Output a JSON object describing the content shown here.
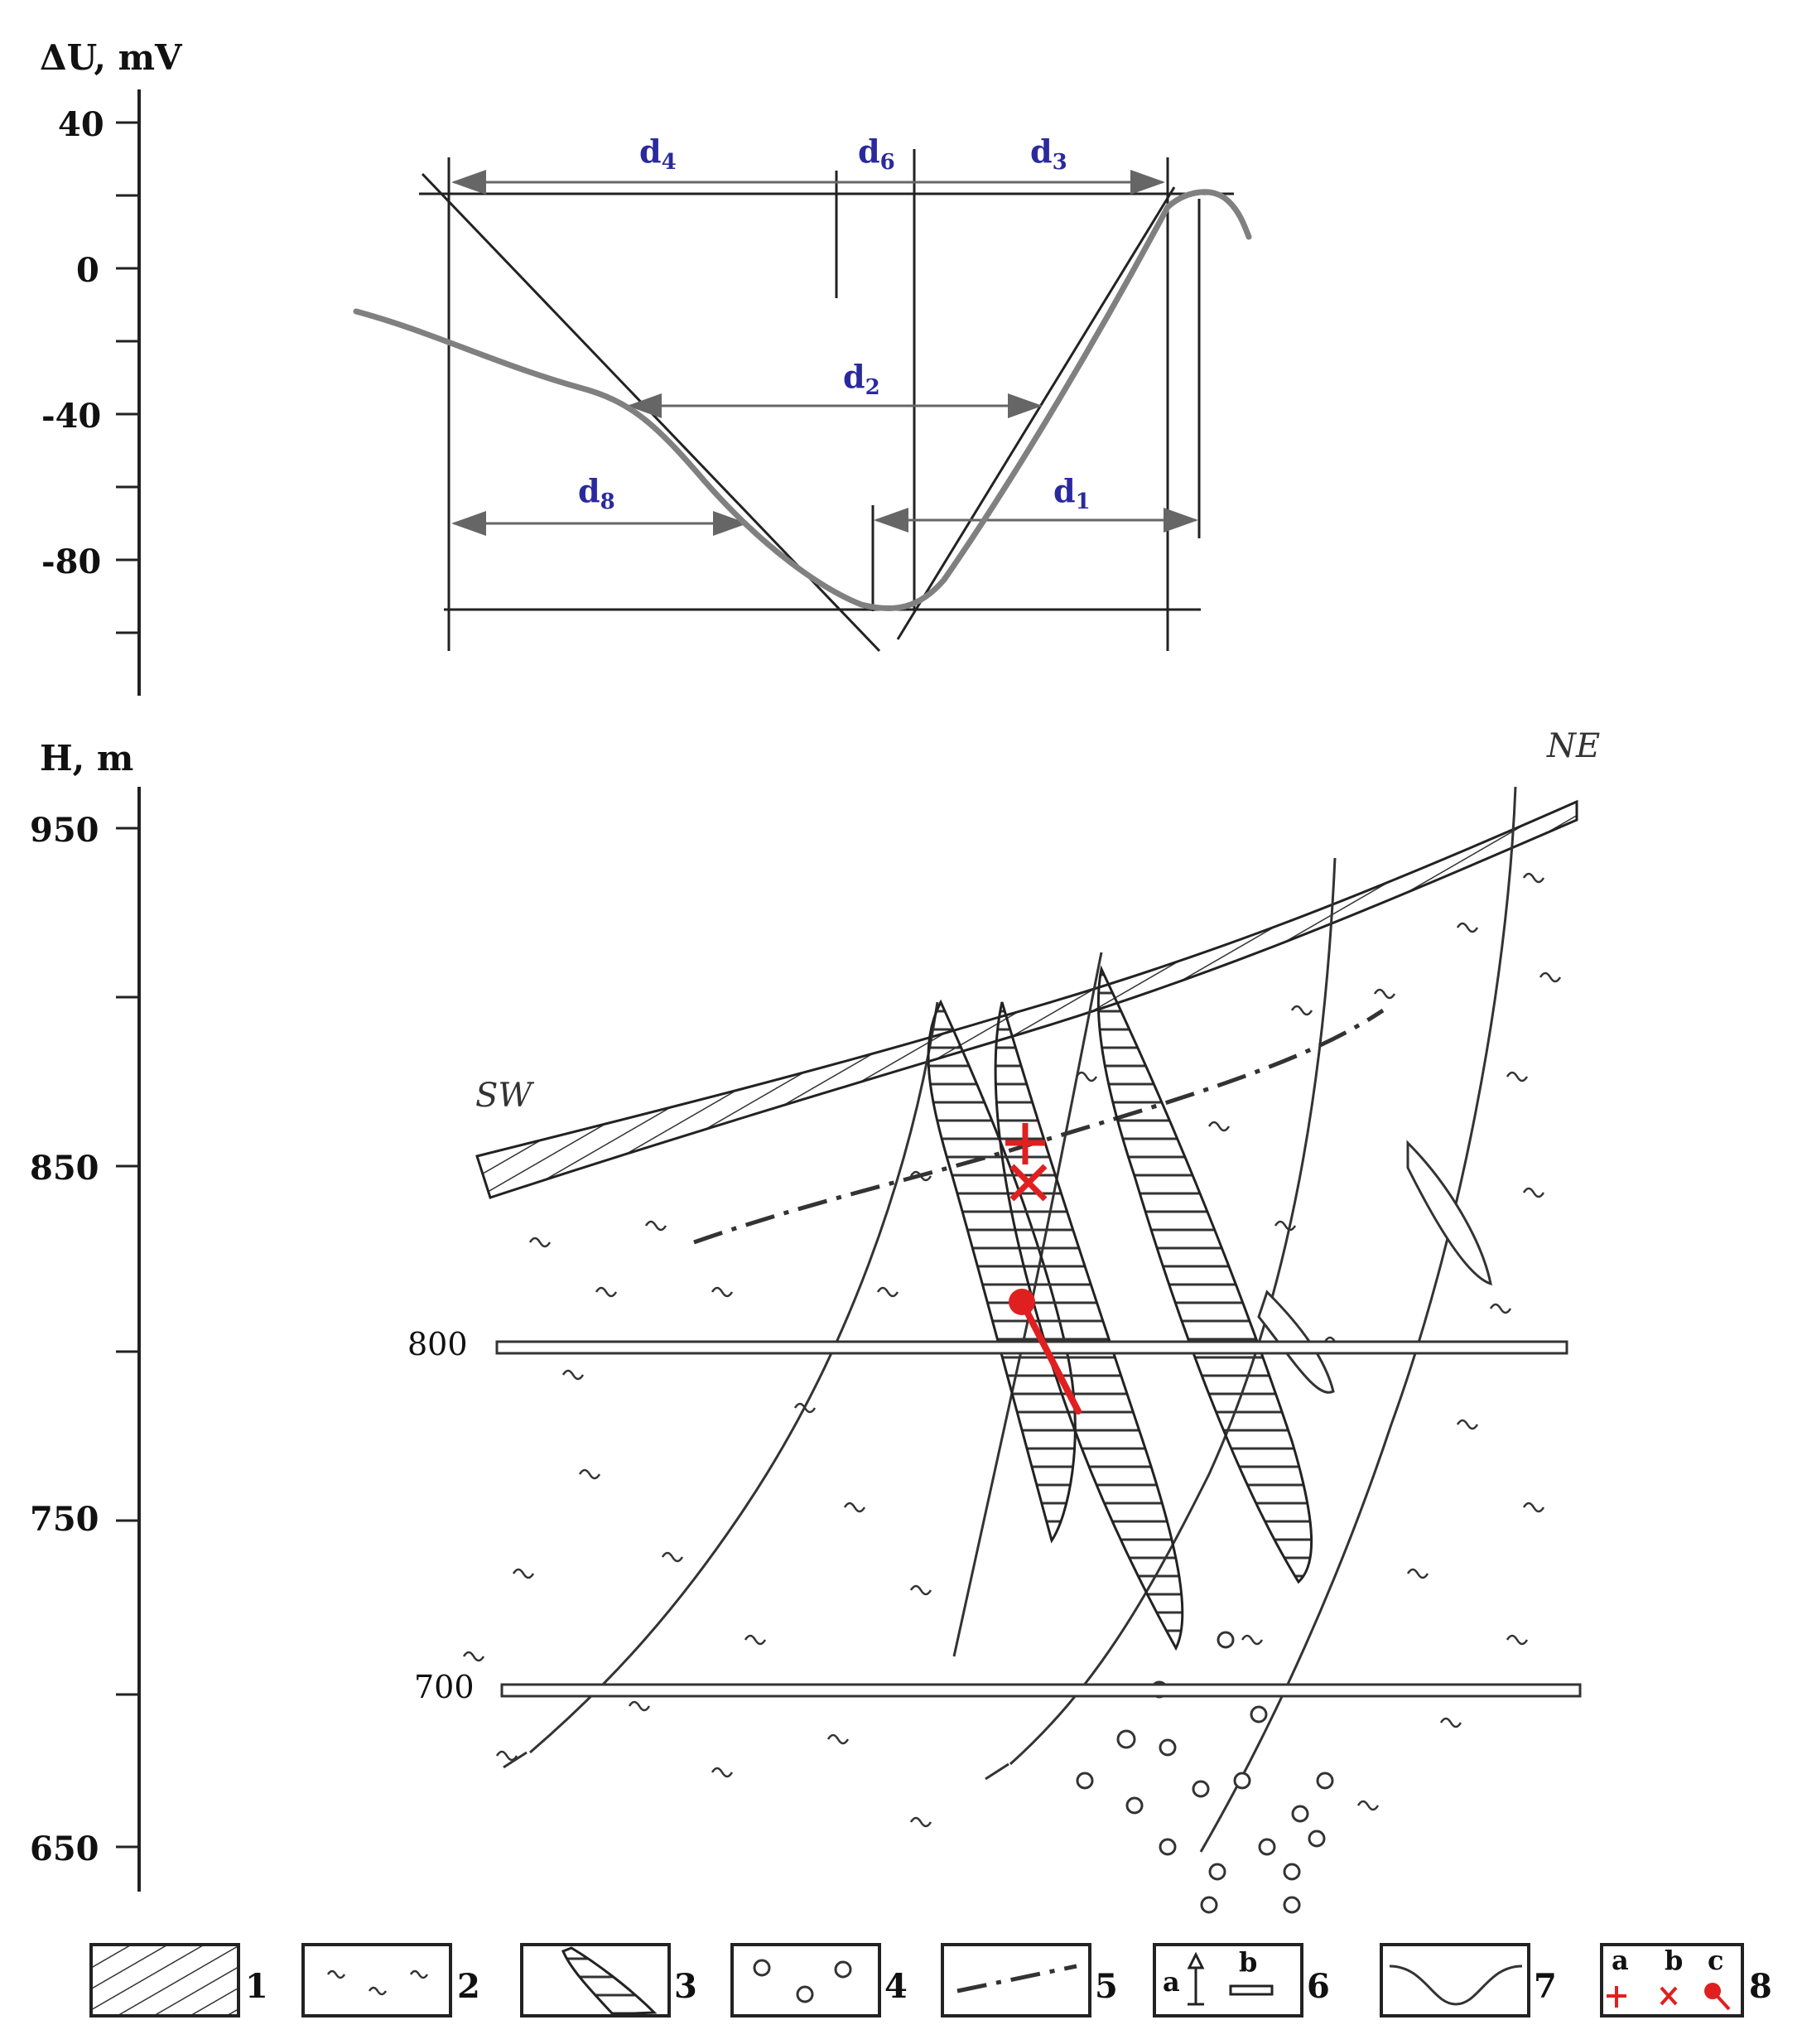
{
  "top_chart": {
    "y_axis_label": "ΔU, mV",
    "y_ticks": [
      "40",
      "0",
      "-40",
      "-80"
    ],
    "interval_labels": {
      "d4": {
        "main": "d",
        "sub": "4"
      },
      "d6": {
        "main": "d",
        "sub": "6"
      },
      "d3": {
        "main": "d",
        "sub": "3"
      },
      "d2": {
        "main": "d",
        "sub": "2"
      },
      "d8": {
        "main": "d",
        "sub": "8"
      },
      "d1": {
        "main": "d",
        "sub": "1"
      }
    }
  },
  "section": {
    "y_axis_label": "H, m",
    "y_ticks": [
      "950",
      "850",
      "750",
      "650"
    ],
    "level_labels": [
      "800",
      "700"
    ],
    "direction_left": "SW",
    "direction_right": "NE"
  },
  "legend": {
    "items": [
      {
        "number": "1",
        "symbol": "layered-cover-hatch"
      },
      {
        "number": "2",
        "symbol": "wavy-dash-pattern"
      },
      {
        "number": "3",
        "symbol": "hatched-lens"
      },
      {
        "number": "4",
        "symbol": "circles-pattern"
      },
      {
        "number": "5",
        "symbol": "dash-dot-line"
      },
      {
        "number": "6",
        "symbol": "borehole-and-level",
        "subs": [
          "a",
          "b"
        ]
      },
      {
        "number": "7",
        "symbol": "curve"
      },
      {
        "number": "8",
        "symbol": "red-markers",
        "subs": [
          "a",
          "b",
          "c"
        ]
      }
    ]
  },
  "colors": {
    "ink": "#222222",
    "curve": "#777777",
    "d_labels": "#2a2a9e",
    "markers": "#e02020"
  }
}
